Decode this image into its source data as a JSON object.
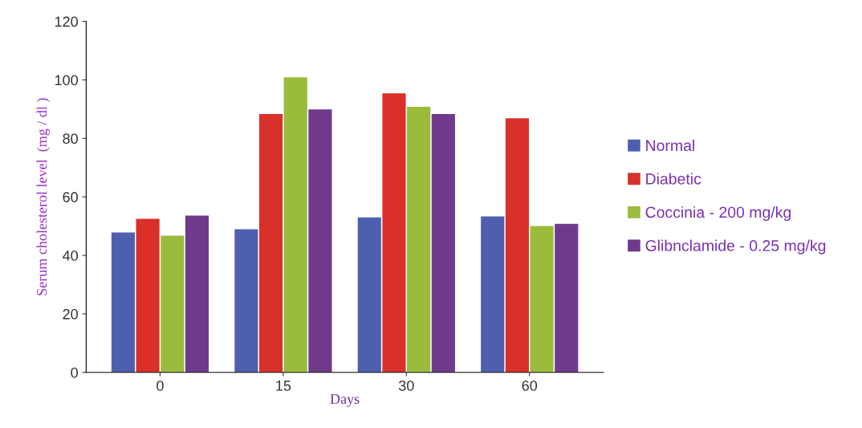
{
  "chart_data": {
    "type": "bar",
    "xlabel": "Days",
    "ylabel": "Serum cholesterol level  (mg / dl )",
    "categories": [
      "0",
      "15",
      "30",
      "60"
    ],
    "series": [
      {
        "name": "Normal",
        "color": "#4f5fb0",
        "values": [
          47.8,
          48.9,
          53,
          53.3
        ]
      },
      {
        "name": "Diabetic",
        "color": "#d9302a",
        "values": [
          52.5,
          88.3,
          95.4,
          86.9
        ]
      },
      {
        "name": "Coccinia - 200 mg/kg",
        "color": "#9bbb3c",
        "values": [
          46.7,
          100.9,
          90.8,
          50
        ]
      },
      {
        "name": "Glibnclamide - 0.25 mg/kg",
        "color": "#6f3a8c",
        "values": [
          53.6,
          89.9,
          88.3,
          50.8
        ]
      }
    ],
    "ylim": [
      0,
      120
    ],
    "yticks": [
      0,
      20,
      40,
      60,
      80,
      100,
      120
    ],
    "grid": false,
    "legend": "right"
  }
}
